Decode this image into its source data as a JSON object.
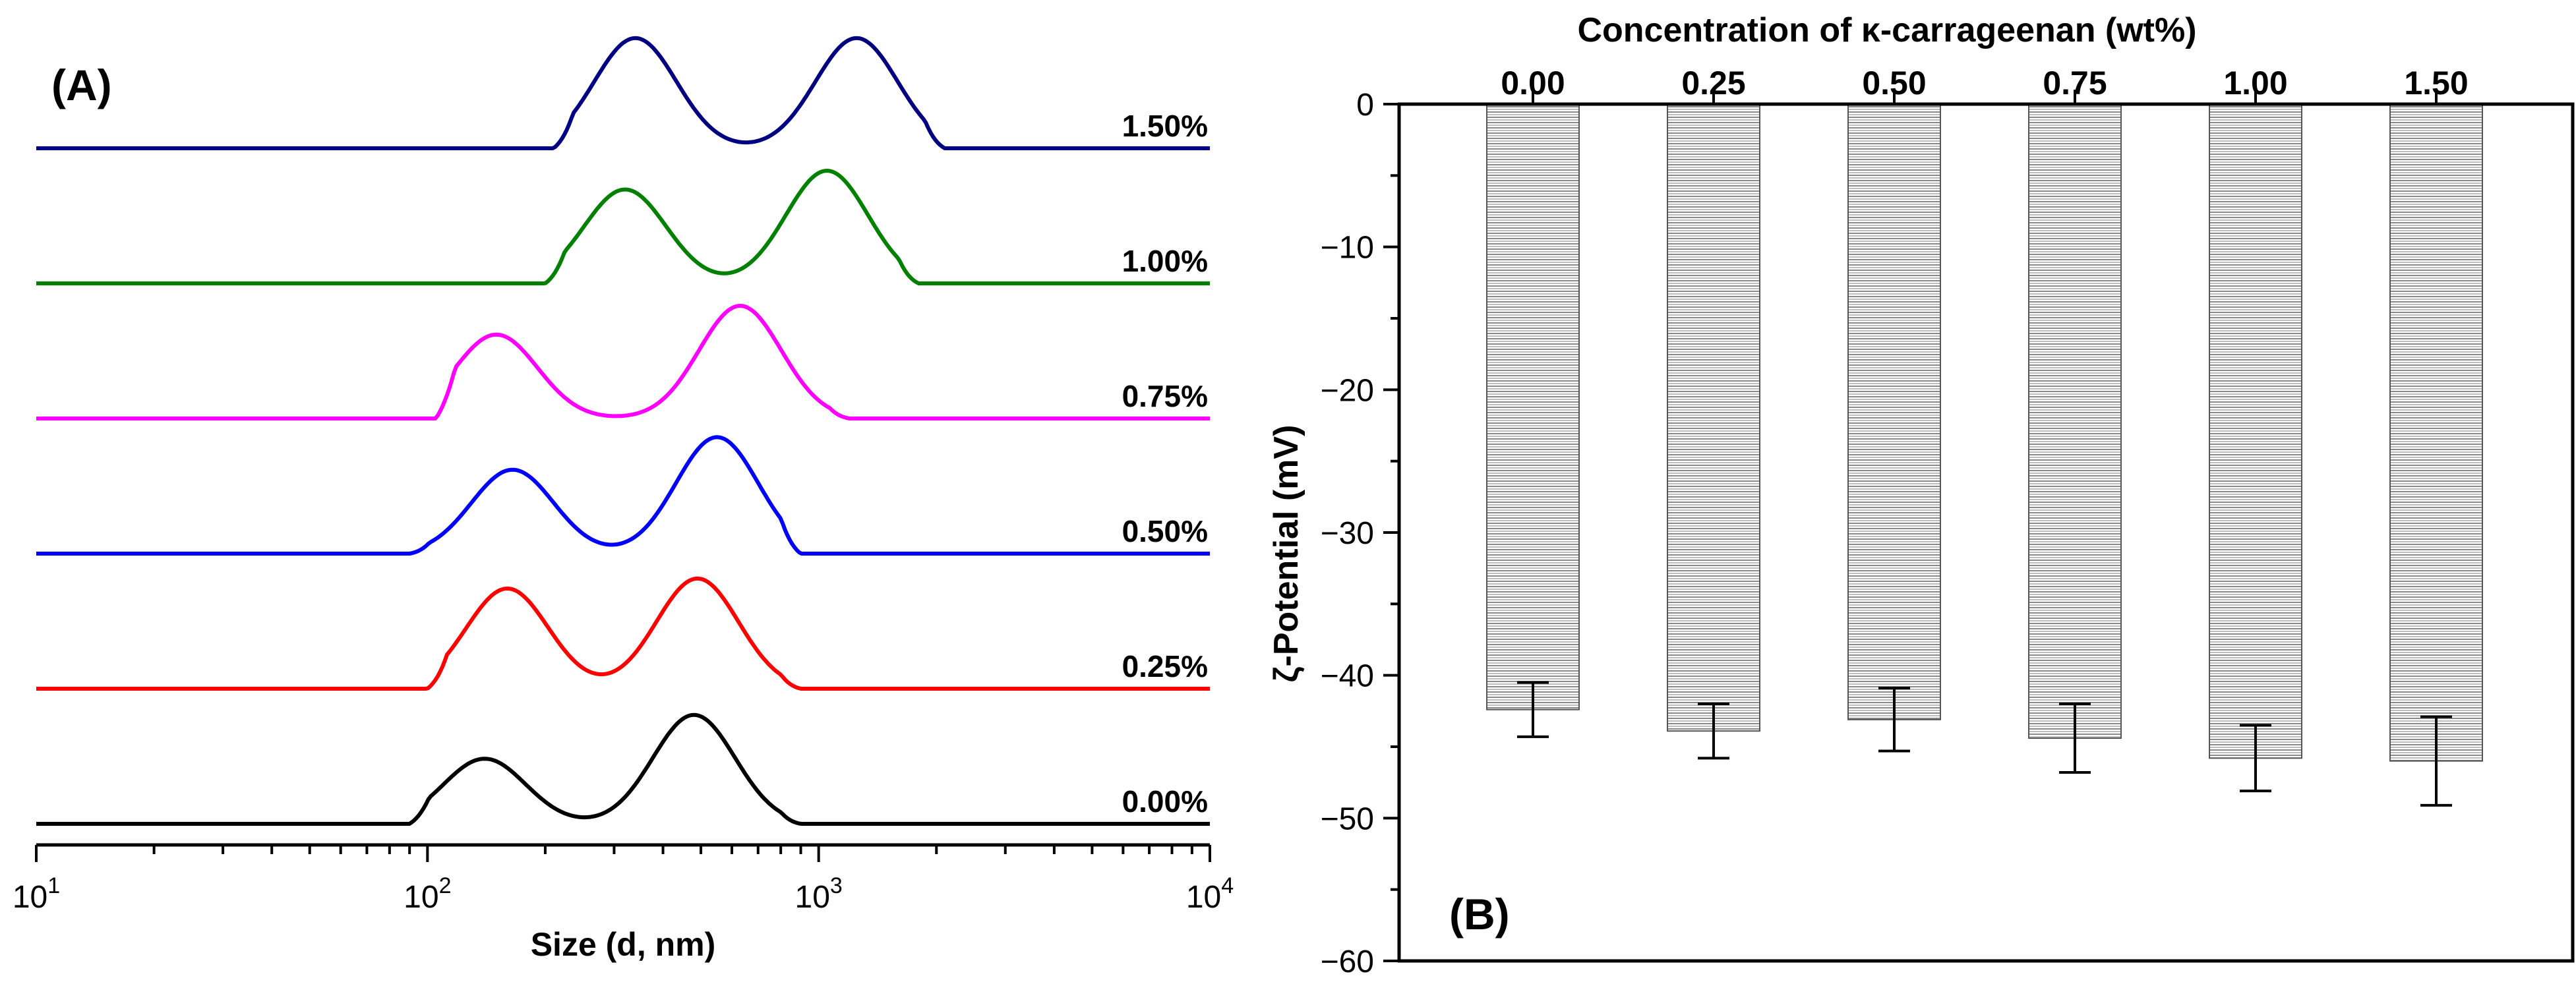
{
  "chart_data": [
    {
      "panel_label": "(A)",
      "type": "line",
      "xscale": "log",
      "xlabel": "Size (d, nm)",
      "xlim": [
        10,
        10000
      ],
      "xticks": [
        {
          "value": 10,
          "base": "10",
          "exp": "1"
        },
        {
          "value": 100,
          "base": "10",
          "exp": "2"
        },
        {
          "value": 1000,
          "base": "10",
          "exp": "3"
        },
        {
          "value": 10000,
          "base": "10",
          "exp": "4"
        }
      ],
      "series": [
        {
          "name": "0.00%",
          "color": "#000000",
          "range": [
            90,
            900
          ],
          "peaks": [
            {
              "center": 140,
              "height": 0.52
            },
            {
              "center": 480,
              "height": 0.87
            }
          ]
        },
        {
          "name": "0.25%",
          "color": "#ff0000",
          "range": [
            100,
            900
          ],
          "peaks": [
            {
              "center": 160,
              "height": 0.8
            },
            {
              "center": 490,
              "height": 0.88
            }
          ]
        },
        {
          "name": "0.50%",
          "color": "#0000ff",
          "range": [
            90,
            900
          ],
          "peaks": [
            {
              "center": 165,
              "height": 0.67
            },
            {
              "center": 550,
              "height": 0.93
            }
          ]
        },
        {
          "name": "0.75%",
          "color": "#ff00ff",
          "range": [
            105,
            1200
          ],
          "peaks": [
            {
              "center": 150,
              "height": 0.67
            },
            {
              "center": 630,
              "height": 0.9
            }
          ]
        },
        {
          "name": "1.00%",
          "color": "#008000",
          "range": [
            200,
            1800
          ],
          "peaks": [
            {
              "center": 320,
              "height": 0.75
            },
            {
              "center": 1050,
              "height": 0.9
            }
          ]
        },
        {
          "name": "1.50%",
          "color": "#000080",
          "range": [
            210,
            2100
          ],
          "peaks": [
            {
              "center": 340,
              "height": 0.88
            },
            {
              "center": 1250,
              "height": 0.88
            }
          ]
        }
      ]
    },
    {
      "panel_label": "(B)",
      "type": "bar",
      "title": "Concentration of κ-carrageenan (wt%)",
      "ylabel": "ζ-Potential (mV)",
      "ylim": [
        -60,
        0
      ],
      "yticks": [
        "0",
        "−10",
        "−20",
        "−30",
        "−40",
        "−50",
        "−60"
      ],
      "yticks_values": [
        0,
        -10,
        -20,
        -30,
        -40,
        -50,
        -60
      ],
      "categories": [
        "0.00",
        "0.25",
        "0.50",
        "0.75",
        "1.00",
        "1.50"
      ],
      "values": [
        -42.4,
        -43.9,
        -43.1,
        -44.4,
        -45.8,
        -46.0
      ],
      "errors": [
        1.9,
        1.9,
        2.2,
        2.4,
        2.3,
        3.1
      ]
    }
  ]
}
